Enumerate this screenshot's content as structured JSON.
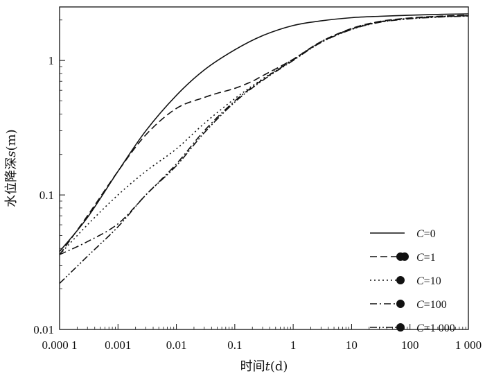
{
  "chart_data": {
    "type": "line",
    "xlabel": {
      "prefix": "时间",
      "var": "t",
      "suffix": "(d)"
    },
    "ylabel": {
      "prefix": "水位降深",
      "var": "s",
      "suffix": "(m)"
    },
    "xscale": "log",
    "yscale": "log",
    "xlim": [
      0.0001,
      1000
    ],
    "ylim": [
      0.01,
      2.5
    ],
    "xticks": [
      {
        "value": 0.0001,
        "label": "0.000 1"
      },
      {
        "value": 0.001,
        "label": "0.001"
      },
      {
        "value": 0.01,
        "label": "0.01"
      },
      {
        "value": 0.1,
        "label": "0.1"
      },
      {
        "value": 1,
        "label": "1"
      },
      {
        "value": 10,
        "label": "10"
      },
      {
        "value": 100,
        "label": "100"
      },
      {
        "value": 1000,
        "label": "1 000"
      }
    ],
    "yticks": [
      {
        "value": 0.01,
        "label": "0.01"
      },
      {
        "value": 0.1,
        "label": "0.1"
      },
      {
        "value": 1,
        "label": "1"
      }
    ],
    "grid": false,
    "legend_position": "bottom-right",
    "series": [
      {
        "name": "C=0",
        "var": "C",
        "eq": "=0",
        "dash": "solid",
        "marker_size": 0,
        "x": [
          0.0001,
          0.0003,
          0.001,
          0.003,
          0.01,
          0.03,
          0.1,
          0.3,
          1,
          3,
          10,
          30,
          100,
          300,
          1000
        ],
        "y": [
          0.038,
          0.068,
          0.15,
          0.3,
          0.55,
          0.85,
          1.2,
          1.53,
          1.82,
          1.97,
          2.08,
          2.13,
          2.17,
          2.2,
          2.22
        ]
      },
      {
        "name": "C=1",
        "var": "C",
        "eq": "=1",
        "dash": "dashed",
        "marker_size": 3,
        "x": [
          0.0001,
          0.0003,
          0.001,
          0.003,
          0.01,
          0.03,
          0.05,
          0.1,
          0.2,
          0.3,
          1,
          3,
          10,
          30,
          100,
          300,
          1000
        ],
        "y": [
          0.036,
          0.07,
          0.15,
          0.28,
          0.44,
          0.53,
          0.57,
          0.62,
          0.7,
          0.77,
          1.02,
          1.38,
          1.73,
          1.95,
          2.07,
          2.13,
          2.17
        ]
      },
      {
        "name": "C=10",
        "var": "C",
        "eq": "=10",
        "dash": "dotted",
        "marker_size": 2,
        "x": [
          0.0001,
          0.0003,
          0.001,
          0.003,
          0.01,
          0.03,
          0.1,
          0.3,
          1,
          3,
          10,
          30,
          100,
          300,
          1000
        ],
        "y": [
          0.036,
          0.06,
          0.1,
          0.15,
          0.22,
          0.34,
          0.52,
          0.73,
          1.02,
          1.38,
          1.72,
          1.94,
          2.06,
          2.12,
          2.16
        ]
      },
      {
        "name": "C=100",
        "var": "C",
        "eq": "=100",
        "dash": "dashdot",
        "marker_size": 1.5,
        "x": [
          0.0001,
          0.0003,
          0.001,
          0.003,
          0.01,
          0.03,
          0.1,
          0.3,
          1,
          3,
          10,
          30,
          100,
          300,
          1000
        ],
        "y": [
          0.036,
          0.045,
          0.061,
          0.1,
          0.17,
          0.3,
          0.5,
          0.72,
          1.01,
          1.37,
          1.71,
          1.93,
          2.05,
          2.11,
          2.15
        ]
      },
      {
        "name": "C=1 000",
        "var": "C",
        "eq": "=1 000",
        "dash": "dashdotdot",
        "marker_size": 1,
        "x": [
          0.0001,
          0.0003,
          0.001,
          0.003,
          0.01,
          0.03,
          0.1,
          0.3,
          1,
          3,
          10,
          30,
          100,
          300,
          1000
        ],
        "y": [
          0.022,
          0.035,
          0.058,
          0.1,
          0.165,
          0.29,
          0.49,
          0.71,
          1.0,
          1.36,
          1.7,
          1.92,
          2.04,
          2.1,
          2.14
        ]
      }
    ]
  }
}
